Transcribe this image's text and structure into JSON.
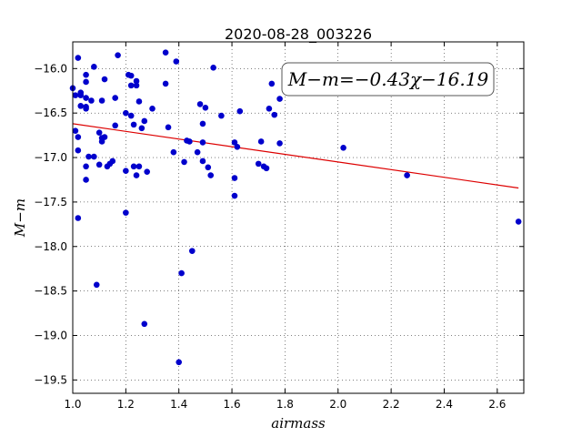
{
  "chart_data": {
    "type": "scatter",
    "title": "2020-08-28_003226",
    "xlabel": "airmass",
    "ylabel": "M−m",
    "xlim": [
      1.0,
      2.7
    ],
    "ylim": [
      -19.65,
      -15.7
    ],
    "y_inverted": true,
    "grid": true,
    "xticks": [
      1.0,
      1.2,
      1.4,
      1.6,
      1.8,
      2.0,
      2.2,
      2.4,
      2.6
    ],
    "xtick_labels": [
      "1.0",
      "1.2",
      "1.4",
      "1.6",
      "1.8",
      "2.0",
      "2.2",
      "2.4",
      "2.6"
    ],
    "yticks": [
      -16.0,
      -16.5,
      -17.0,
      -17.5,
      -18.0,
      -18.5,
      -19.0,
      -19.5
    ],
    "ytick_labels": [
      "−16.0",
      "−16.5",
      "−17.0",
      "−17.5",
      "−18.0",
      "−18.5",
      "−19.0",
      "−19.5"
    ],
    "annotation": "M−m=−0.43χ−16.19",
    "fit": {
      "slope": -0.43,
      "intercept": -16.19,
      "x_range": [
        1.0,
        2.68
      ],
      "color": "#dd0000"
    },
    "point_color": "#0000cc",
    "points": [
      [
        1.0,
        -16.22
      ],
      [
        1.01,
        -16.3
      ],
      [
        1.01,
        -16.7
      ],
      [
        1.02,
        -16.77
      ],
      [
        1.02,
        -16.92
      ],
      [
        1.02,
        -17.68
      ],
      [
        1.02,
        -15.88
      ],
      [
        1.03,
        -16.3
      ],
      [
        1.03,
        -16.42
      ],
      [
        1.03,
        -16.27
      ],
      [
        1.05,
        -16.07
      ],
      [
        1.05,
        -16.15
      ],
      [
        1.05,
        -16.33
      ],
      [
        1.05,
        -16.43
      ],
      [
        1.05,
        -16.45
      ],
      [
        1.05,
        -17.1
      ],
      [
        1.05,
        -17.25
      ],
      [
        1.06,
        -16.99
      ],
      [
        1.07,
        -16.36
      ],
      [
        1.08,
        -16.99
      ],
      [
        1.08,
        -15.98
      ],
      [
        1.09,
        -18.43
      ],
      [
        1.1,
        -16.72
      ],
      [
        1.1,
        -17.08
      ],
      [
        1.11,
        -16.78
      ],
      [
        1.11,
        -16.82
      ],
      [
        1.11,
        -16.36
      ],
      [
        1.12,
        -16.77
      ],
      [
        1.12,
        -16.12
      ],
      [
        1.13,
        -17.1
      ],
      [
        1.14,
        -17.07
      ],
      [
        1.15,
        -17.04
      ],
      [
        1.16,
        -16.33
      ],
      [
        1.16,
        -16.64
      ],
      [
        1.17,
        -15.85
      ],
      [
        1.2,
        -17.15
      ],
      [
        1.2,
        -16.5
      ],
      [
        1.2,
        -17.62
      ],
      [
        1.21,
        -16.07
      ],
      [
        1.22,
        -16.08
      ],
      [
        1.22,
        -16.53
      ],
      [
        1.22,
        -16.19
      ],
      [
        1.23,
        -17.1
      ],
      [
        1.23,
        -16.63
      ],
      [
        1.24,
        -16.19
      ],
      [
        1.24,
        -16.14
      ],
      [
        1.24,
        -17.2
      ],
      [
        1.25,
        -16.37
      ],
      [
        1.25,
        -17.1
      ],
      [
        1.26,
        -16.67
      ],
      [
        1.27,
        -16.59
      ],
      [
        1.27,
        -18.87
      ],
      [
        1.28,
        -17.16
      ],
      [
        1.3,
        -16.45
      ],
      [
        1.35,
        -15.82
      ],
      [
        1.35,
        -16.17
      ],
      [
        1.36,
        -16.66
      ],
      [
        1.38,
        -16.94
      ],
      [
        1.39,
        -15.92
      ],
      [
        1.4,
        -19.3
      ],
      [
        1.41,
        -18.3
      ],
      [
        1.42,
        -17.05
      ],
      [
        1.43,
        -16.81
      ],
      [
        1.44,
        -16.82
      ],
      [
        1.45,
        -18.05
      ],
      [
        1.47,
        -16.94
      ],
      [
        1.48,
        -16.4
      ],
      [
        1.49,
        -16.62
      ],
      [
        1.49,
        -16.83
      ],
      [
        1.49,
        -17.04
      ],
      [
        1.5,
        -16.44
      ],
      [
        1.51,
        -17.11
      ],
      [
        1.52,
        -17.2
      ],
      [
        1.53,
        -15.99
      ],
      [
        1.56,
        -16.53
      ],
      [
        1.61,
        -16.83
      ],
      [
        1.61,
        -17.23
      ],
      [
        1.61,
        -17.43
      ],
      [
        1.62,
        -16.88
      ],
      [
        1.63,
        -16.48
      ],
      [
        1.7,
        -17.07
      ],
      [
        1.71,
        -16.82
      ],
      [
        1.72,
        -17.1
      ],
      [
        1.73,
        -17.12
      ],
      [
        1.74,
        -16.45
      ],
      [
        1.75,
        -16.17
      ],
      [
        1.76,
        -16.52
      ],
      [
        1.78,
        -16.84
      ],
      [
        1.78,
        -16.34
      ],
      [
        2.02,
        -16.89
      ],
      [
        2.26,
        -17.2
      ],
      [
        2.68,
        -17.72
      ]
    ]
  }
}
